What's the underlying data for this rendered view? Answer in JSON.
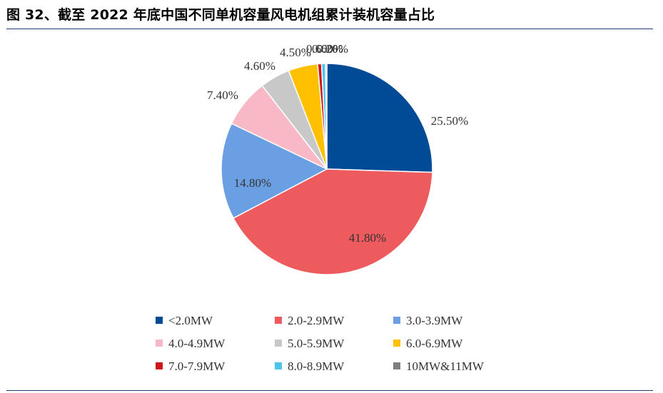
{
  "title": "图 32、截至 2022 年底中国不同单机容量风电机组累计装机容量占比",
  "chart_data": {
    "type": "pie",
    "title": "图 32、截至 2022 年底中国不同单机容量风电机组累计装机容量占比",
    "slices": [
      {
        "name": "<2.0MW",
        "value": 25.5,
        "label": "25.50%",
        "color": "#004a96"
      },
      {
        "name": "2.0-2.9MW",
        "value": 41.8,
        "label": "41.80%",
        "color": "#ed5b5f"
      },
      {
        "name": "3.0-3.9MW",
        "value": 14.8,
        "label": "14.80%",
        "color": "#6a9fe3"
      },
      {
        "name": "4.0-4.9MW",
        "value": 7.4,
        "label": "7.40%",
        "color": "#f9b8c5"
      },
      {
        "name": "5.0-5.9MW",
        "value": 4.6,
        "label": "4.60%",
        "color": "#c8c8c8"
      },
      {
        "name": "6.0-6.9MW",
        "value": 4.5,
        "label": "4.50%",
        "color": "#ffc000"
      },
      {
        "name": "7.0-7.9MW",
        "value": 0.6,
        "label": "0.60%",
        "color": "#d0141b"
      },
      {
        "name": "8.0-8.9MW",
        "value": 0.6,
        "label": "0.60%",
        "color": "#4dc4ea"
      },
      {
        "name": "10MW&11MW",
        "value": 0.2,
        "label": "0.20%",
        "color": "#7f7f7f"
      }
    ],
    "legend": {
      "position": "bottom",
      "columns": 3
    }
  }
}
